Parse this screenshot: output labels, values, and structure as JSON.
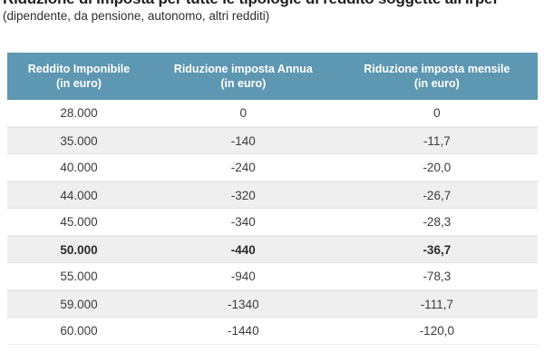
{
  "page": {
    "title": "Riduzione di imposta per tutte le tipologie di reddito soggette all'Irpef",
    "subtitle": "(dipendente, da pensione, autonomo, altri redditi)"
  },
  "colors": {
    "header_bg": "#5d97b1",
    "header_text": "#ffffff",
    "row_alt_bg": "#efefef",
    "body_text": "#3c3c3c"
  },
  "chart_data": {
    "type": "table",
    "title": "Riduzione di imposta per tutte le tipologie di reddito soggette all'Irpef",
    "subtitle": "(dipendente, da pensione, autonomo, altri redditi)",
    "columns": [
      {
        "label": "Reddito Imponibile",
        "unit": "(in euro)"
      },
      {
        "label": "Riduzione imposta Annua",
        "unit": "(in euro)"
      },
      {
        "label": "Riduzione imposta mensile",
        "unit": "(in euro)"
      }
    ],
    "rows": [
      {
        "cells": [
          "28.000",
          "0",
          "0"
        ],
        "bold": false
      },
      {
        "cells": [
          "35.000",
          "-140",
          "-11,7"
        ],
        "bold": false
      },
      {
        "cells": [
          "40.000",
          "-240",
          "-20,0"
        ],
        "bold": false
      },
      {
        "cells": [
          "44.000",
          "-320",
          "-26,7"
        ],
        "bold": false
      },
      {
        "cells": [
          "45.000",
          "-340",
          "-28,3"
        ],
        "bold": false
      },
      {
        "cells": [
          "50.000",
          "-440",
          "-36,7"
        ],
        "bold": true
      },
      {
        "cells": [
          "55.000",
          "-940",
          "-78,3"
        ],
        "bold": false
      },
      {
        "cells": [
          "59.000",
          "-1340",
          "-111,7"
        ],
        "bold": false
      },
      {
        "cells": [
          "60.000",
          "-1440",
          "-120,0"
        ],
        "bold": false
      }
    ]
  }
}
